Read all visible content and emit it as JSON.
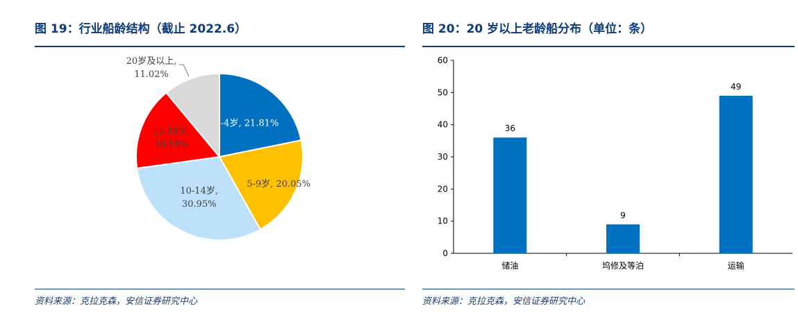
{
  "left": {
    "title": "图 19：行业船龄结构（截止 2022.6）",
    "source": "资料来源：克拉克森，安信证券研究中心"
  },
  "right": {
    "title": "图 20：20 岁以上老龄船分布（单位：条）",
    "source": "资料来源：克拉克森，安信证券研究中心"
  },
  "chart_data": [
    {
      "type": "pie",
      "title": "图 19：行业船龄结构（截止 2022.6）",
      "slices": [
        {
          "label_line1": "0-4岁,",
          "label_line2": "21.81%",
          "value": 21.81,
          "color": "#0070c0",
          "text_color": "#ffffff"
        },
        {
          "label_line1": "5-9岁,",
          "label_line2": "20.05%",
          "value": 20.05,
          "color": "#ffc000",
          "text_color": "#404040"
        },
        {
          "label_line1": "10-14岁,",
          "label_line2": "30.95%",
          "value": 30.95,
          "color": "#bde0fb",
          "text_color": "#404040"
        },
        {
          "label_line1": "15-19岁,",
          "label_line2": "16.18%",
          "value": 16.18,
          "color": "#ff0000",
          "text_color": "#404040"
        },
        {
          "label_line1": "20岁及以上,",
          "label_line2": "11.02%",
          "value": 11.02,
          "color": "#d9d9d9",
          "text_color": "#404040"
        }
      ]
    },
    {
      "type": "bar",
      "title": "图 20：20 岁以上老龄船分布（单位：条）",
      "categories": [
        "储油",
        "坞修及等泊",
        "运输"
      ],
      "values": [
        36,
        9,
        49
      ],
      "data_labels": [
        "36",
        "9",
        "49"
      ],
      "ylim": [
        0,
        60
      ],
      "yticks": [
        "0",
        "10",
        "20",
        "30",
        "40",
        "50",
        "60"
      ],
      "bar_color": "#0070c0",
      "grid": false,
      "legend": "none"
    }
  ]
}
